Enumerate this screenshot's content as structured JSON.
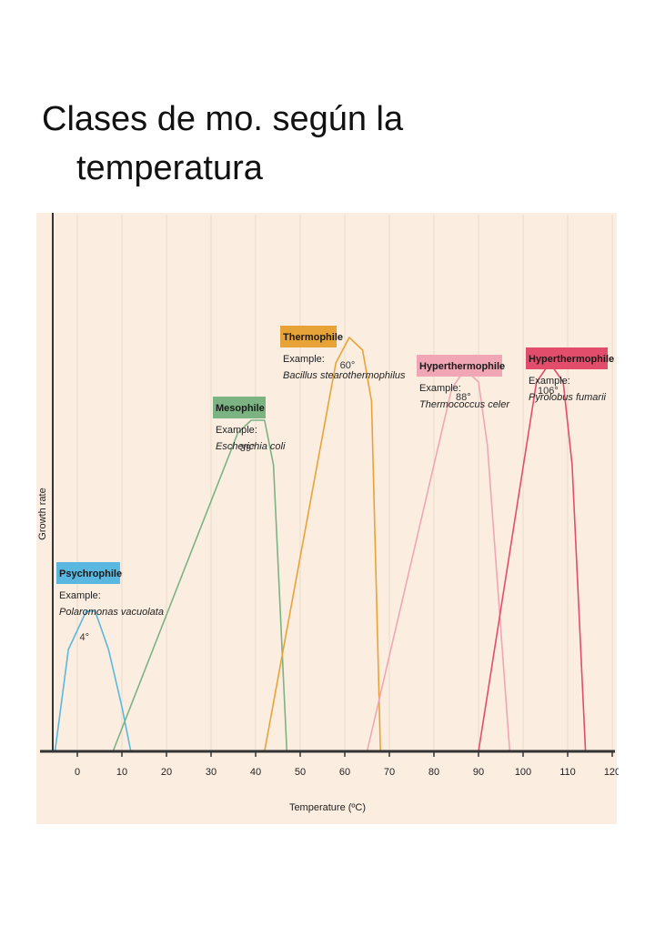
{
  "title": {
    "line1": "Clases de mo. según la",
    "line2": "temperatura"
  },
  "chart_data": {
    "type": "line",
    "xlabel": "Temperature (ºC)",
    "ylabel": "Growth rate",
    "xlim": [
      -5,
      120
    ],
    "x_ticks": [
      0,
      10,
      20,
      30,
      40,
      50,
      60,
      70,
      80,
      90,
      100,
      110,
      120
    ],
    "grid": true,
    "colors": {
      "background": "#fbeee0",
      "grid": "#e9dccd",
      "axis": "#333333"
    },
    "series": [
      {
        "name": "Psychrophile",
        "example_label": "Example:",
        "example": "Polaromonas vacuolata",
        "peak_label": "4°",
        "color": "#5ab8e0",
        "points": [
          [
            -5,
            0
          ],
          [
            -2,
            0.16
          ],
          [
            2,
            0.22
          ],
          [
            4,
            0.22
          ],
          [
            7,
            0.16
          ],
          [
            10,
            0.07
          ],
          [
            12,
            0
          ]
        ]
      },
      {
        "name": "Mesophile",
        "example_label": "Example:",
        "example": "Escherichia coli",
        "peak_label": "39°",
        "color": "#7bb383",
        "points": [
          [
            8,
            0
          ],
          [
            36,
            0.5
          ],
          [
            39,
            0.52
          ],
          [
            42,
            0.52
          ],
          [
            44,
            0.45
          ],
          [
            47,
            0
          ]
        ]
      },
      {
        "name": "Thermophile",
        "example_label": "Example:",
        "example": "Bacillus stearothermophilus",
        "peak_label": "60°",
        "color": "#e8a338",
        "points": [
          [
            42,
            0
          ],
          [
            58,
            0.61
          ],
          [
            61,
            0.65
          ],
          [
            64,
            0.63
          ],
          [
            66,
            0.55
          ],
          [
            68,
            0
          ]
        ]
      },
      {
        "name": "Hyperthermophile",
        "example_label": "Example:",
        "example": "Thermococcus celer",
        "peak_label": "88°",
        "color": "#f0a6b4",
        "points": [
          [
            65,
            0
          ],
          [
            84,
            0.57
          ],
          [
            87,
            0.6
          ],
          [
            90,
            0.58
          ],
          [
            92,
            0.48
          ],
          [
            97,
            0
          ]
        ]
      },
      {
        "name": "Hyperthermophile",
        "example_label": "Example:",
        "example": "Pyrolobus fumarii",
        "peak_label": "106°",
        "color": "#e34d6c",
        "points": [
          [
            90,
            0
          ],
          [
            103,
            0.58
          ],
          [
            106,
            0.61
          ],
          [
            109,
            0.58
          ],
          [
            111,
            0.45
          ],
          [
            114,
            0
          ]
        ]
      }
    ]
  }
}
